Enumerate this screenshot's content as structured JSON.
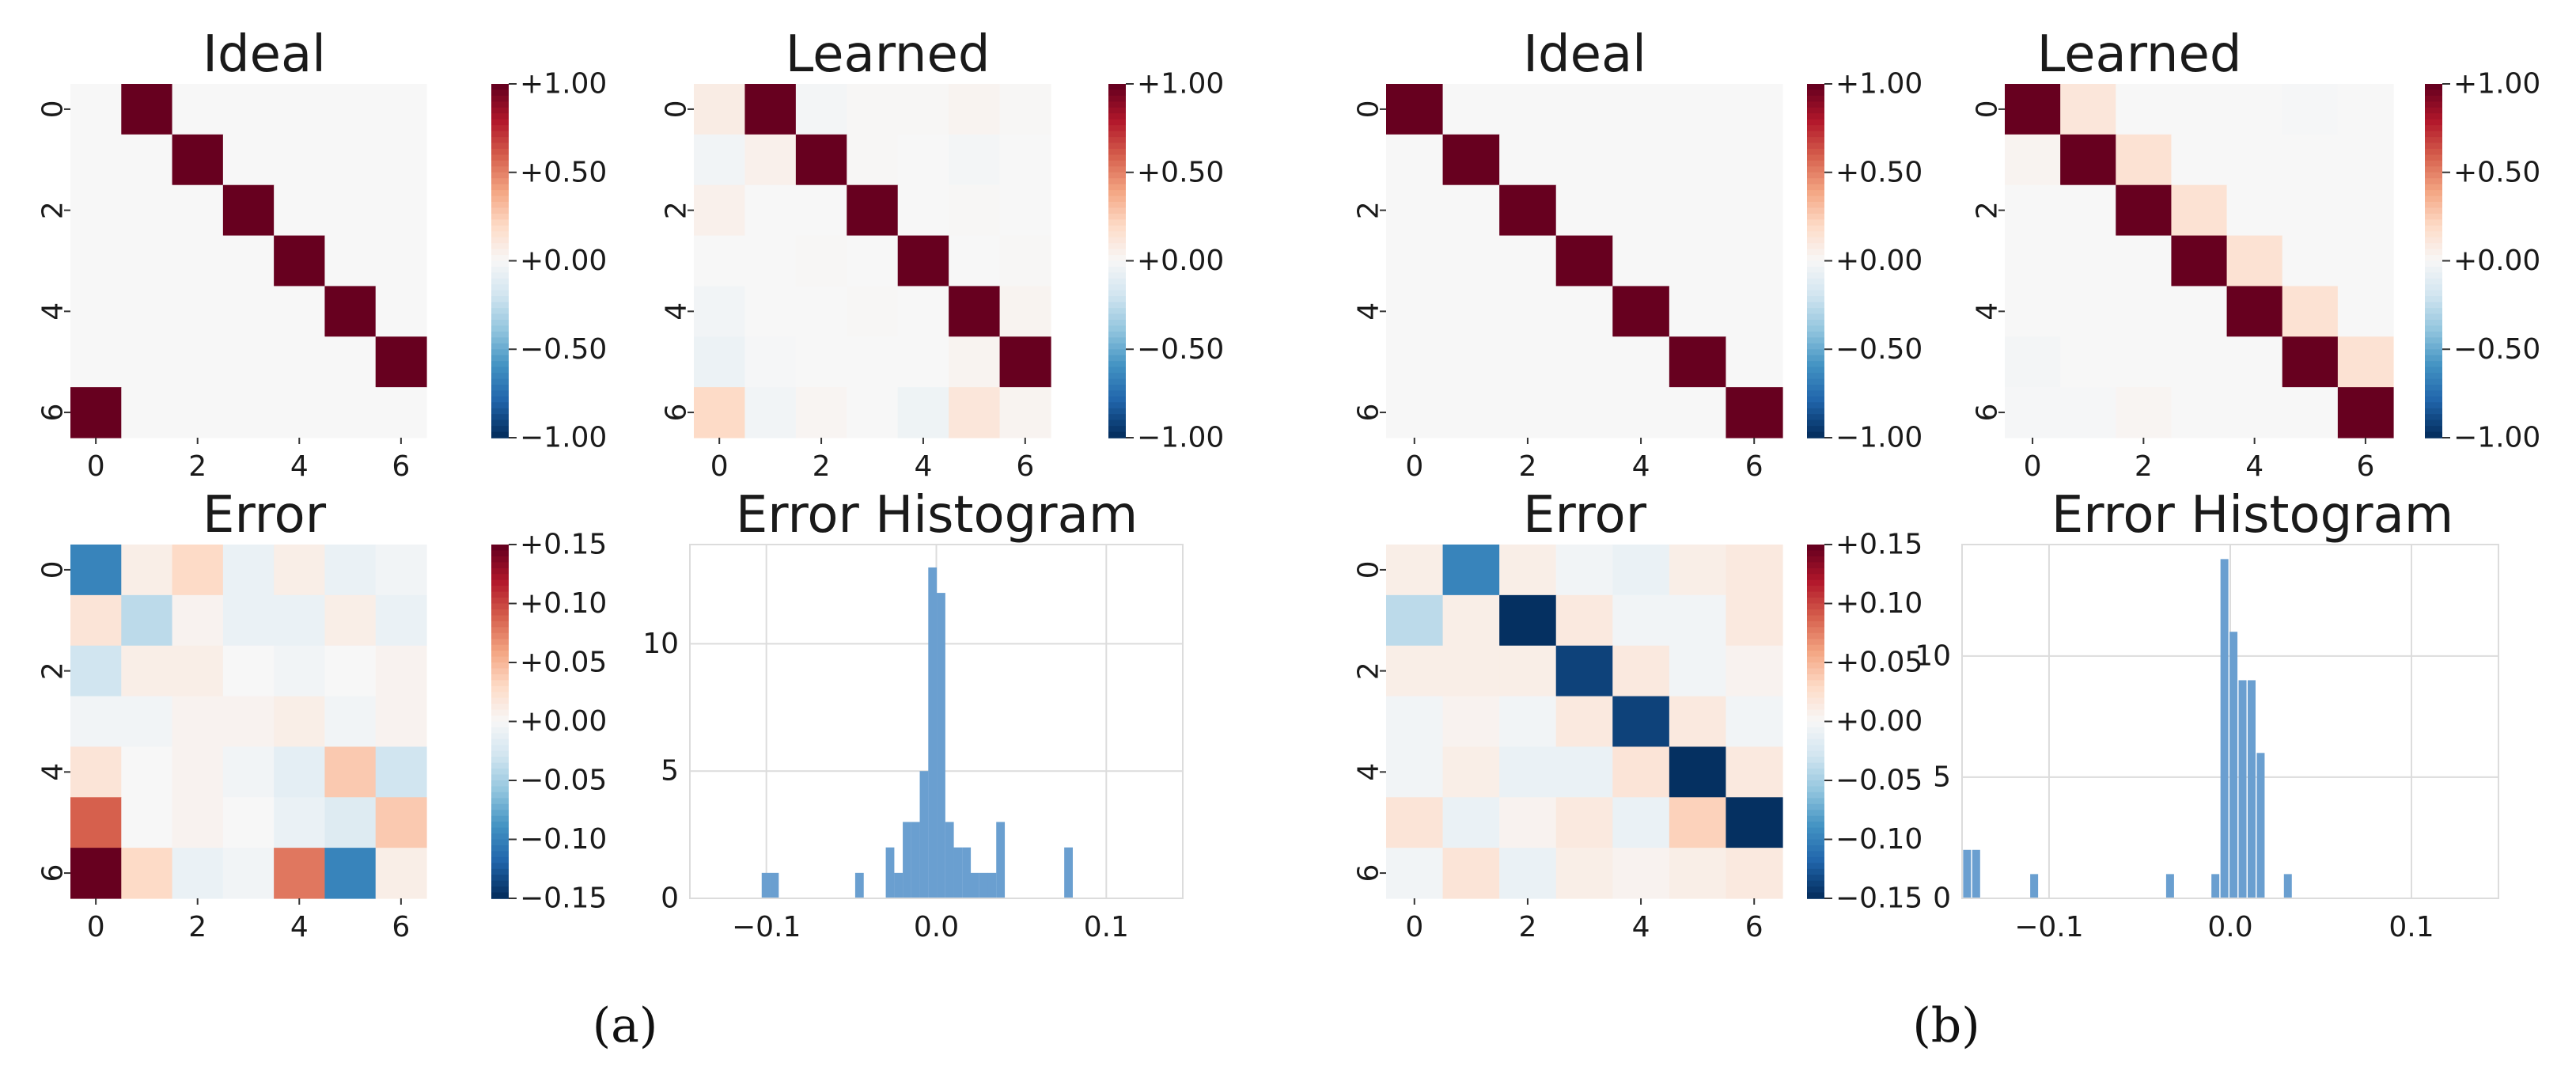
{
  "figure": {
    "captions": [
      "(a)",
      "(b)"
    ]
  },
  "colors": {
    "cmap_stops": [
      [
        0.0,
        "#053061"
      ],
      [
        0.1,
        "#2166ac"
      ],
      [
        0.2,
        "#4393c3"
      ],
      [
        0.3,
        "#92c5de"
      ],
      [
        0.4,
        "#d1e5f0"
      ],
      [
        0.5,
        "#f7f7f7"
      ],
      [
        0.6,
        "#fddbc7"
      ],
      [
        0.7,
        "#f4a582"
      ],
      [
        0.8,
        "#d6604d"
      ],
      [
        0.9,
        "#b2182b"
      ],
      [
        1.0,
        "#67001f"
      ]
    ],
    "hist_bar": "#6a9fd0",
    "grid": "#dcdcdc"
  },
  "chart_data": [
    {
      "type": "heatmap",
      "panel": "a-ideal",
      "title": "Ideal",
      "xticks": [
        "0",
        "2",
        "4",
        "6"
      ],
      "yticks": [
        "0",
        "2",
        "4",
        "6"
      ],
      "vmin": -1,
      "vmax": 1,
      "colorbar_ticks": [
        "+1.00",
        "+0.50",
        "+0.00",
        "−0.50",
        "−1.00"
      ],
      "values": [
        [
          0,
          1,
          0,
          0,
          0,
          0,
          0
        ],
        [
          0,
          0,
          1,
          0,
          0,
          0,
          0
        ],
        [
          0,
          0,
          0,
          1,
          0,
          0,
          0
        ],
        [
          0,
          0,
          0,
          0,
          1,
          0,
          0
        ],
        [
          0,
          0,
          0,
          0,
          0,
          1,
          0
        ],
        [
          0,
          0,
          0,
          0,
          0,
          0,
          1
        ],
        [
          1,
          0,
          0,
          0,
          0,
          0,
          0
        ]
      ]
    },
    {
      "type": "heatmap",
      "panel": "a-learned",
      "title": "Learned",
      "xticks": [
        "0",
        "2",
        "4",
        "6"
      ],
      "yticks": [
        "0",
        "2",
        "4",
        "6"
      ],
      "vmin": -1,
      "vmax": 1,
      "colorbar_ticks": [
        "+1.00",
        "+0.50",
        "+0.00",
        "−0.50",
        "−1.00"
      ],
      "values": [
        [
          0.08,
          1,
          -0.02,
          0.01,
          0.01,
          0.03,
          0.01
        ],
        [
          -0.03,
          0.05,
          1,
          0.01,
          0,
          -0.02,
          0
        ],
        [
          0.05,
          0,
          0,
          1,
          0,
          0.01,
          0
        ],
        [
          0,
          0,
          0.01,
          0,
          1,
          0,
          0.01
        ],
        [
          -0.03,
          0,
          0,
          0.01,
          0,
          1,
          0.03
        ],
        [
          -0.06,
          -0.01,
          0,
          0,
          0,
          0.03,
          1
        ],
        [
          0.2,
          -0.03,
          0.02,
          0,
          -0.05,
          0.12,
          0.03
        ]
      ]
    },
    {
      "type": "heatmap",
      "panel": "a-error",
      "title": "Error",
      "xticks": [
        "0",
        "2",
        "4",
        "6"
      ],
      "yticks": [
        "0",
        "2",
        "4",
        "6"
      ],
      "vmin": -0.15,
      "vmax": 0.15,
      "colorbar_ticks": [
        "+0.15",
        "+0.10",
        "+0.05",
        "+0.00",
        "−0.05",
        "−0.10",
        "−0.15"
      ],
      "values": [
        [
          -0.1,
          0.01,
          0.03,
          -0.01,
          0.01,
          -0.01,
          -0.005
        ],
        [
          0.02,
          -0.04,
          0.005,
          -0.01,
          -0.01,
          0.01,
          -0.01
        ],
        [
          -0.03,
          0.01,
          0.01,
          0,
          -0.005,
          0,
          0.005
        ],
        [
          -0.005,
          -0.005,
          0.005,
          0.005,
          0.01,
          -0.005,
          0.005
        ],
        [
          0.02,
          0,
          0.005,
          -0.005,
          -0.015,
          0.04,
          -0.03
        ],
        [
          0.09,
          0,
          0.005,
          0,
          -0.01,
          -0.02,
          0.04
        ],
        [
          0.15,
          0.03,
          -0.01,
          -0.005,
          0.08,
          -0.1,
          0.01
        ]
      ]
    },
    {
      "type": "bar",
      "panel": "a-hist",
      "title": "Error Histogram",
      "xlim": [
        -0.145,
        0.145
      ],
      "ylim": [
        0,
        13.9
      ],
      "xticks": [
        -0.1,
        0.0,
        0.1
      ],
      "xtick_labels": [
        "−0.1",
        "0.0",
        "0.1"
      ],
      "yticks": [
        0,
        5,
        10
      ],
      "ytick_labels": [
        "0",
        "5",
        "10"
      ],
      "bin_width": 0.0055,
      "bins": [
        [
          -0.1,
          1
        ],
        [
          -0.095,
          1
        ],
        [
          -0.045,
          1
        ],
        [
          -0.027,
          2
        ],
        [
          -0.022,
          1
        ],
        [
          -0.017,
          3
        ],
        [
          -0.012,
          3
        ],
        [
          -0.007,
          5
        ],
        [
          -0.002,
          13
        ],
        [
          0.003,
          12
        ],
        [
          0.008,
          3
        ],
        [
          0.013,
          2
        ],
        [
          0.018,
          2
        ],
        [
          0.023,
          1
        ],
        [
          0.028,
          1
        ],
        [
          0.033,
          1
        ],
        [
          0.038,
          3
        ],
        [
          0.078,
          2
        ]
      ]
    },
    {
      "type": "heatmap",
      "panel": "b-ideal",
      "title": "Ideal",
      "xticks": [
        "0",
        "2",
        "4",
        "6"
      ],
      "yticks": [
        "0",
        "2",
        "4",
        "6"
      ],
      "vmin": -1,
      "vmax": 1,
      "colorbar_ticks": [
        "+1.00",
        "+0.50",
        "+0.00",
        "−0.50",
        "−1.00"
      ],
      "values": [
        [
          1,
          0,
          0,
          0,
          0,
          0,
          0
        ],
        [
          0,
          1,
          0,
          0,
          0,
          0,
          0
        ],
        [
          0,
          0,
          1,
          0,
          0,
          0,
          0
        ],
        [
          0,
          0,
          0,
          1,
          0,
          0,
          0
        ],
        [
          0,
          0,
          0,
          0,
          1,
          0,
          0
        ],
        [
          0,
          0,
          0,
          0,
          0,
          1,
          0
        ],
        [
          0,
          0,
          0,
          0,
          0,
          0,
          1
        ]
      ]
    },
    {
      "type": "heatmap",
      "panel": "b-learned",
      "title": "Learned",
      "xticks": [
        "0",
        "2",
        "4",
        "6"
      ],
      "yticks": [
        "0",
        "2",
        "4",
        "6"
      ],
      "vmin": -1,
      "vmax": 1,
      "colorbar_ticks": [
        "+1.00",
        "+0.50",
        "+0.00",
        "−0.50",
        "−1.00"
      ],
      "values": [
        [
          1,
          0.12,
          0,
          0,
          0,
          -0.01,
          0
        ],
        [
          0.03,
          1,
          0.15,
          0,
          0,
          0,
          0
        ],
        [
          0,
          0,
          1,
          0.15,
          0,
          0,
          0
        ],
        [
          0,
          0,
          0,
          1,
          0.15,
          0,
          0
        ],
        [
          0,
          0,
          0,
          0,
          1,
          0.15,
          0
        ],
        [
          -0.02,
          0,
          0,
          0,
          0,
          1,
          0.15
        ],
        [
          -0.01,
          -0.01,
          0.02,
          0,
          0,
          0,
          1
        ]
      ]
    },
    {
      "type": "heatmap",
      "panel": "b-error",
      "title": "Error",
      "xticks": [
        "0",
        "2",
        "4",
        "6"
      ],
      "yticks": [
        "0",
        "2",
        "4",
        "6"
      ],
      "vmin": -0.15,
      "vmax": 0.15,
      "colorbar_ticks": [
        "+0.15",
        "+0.10",
        "+0.05",
        "+0.00",
        "−0.05",
        "−0.10",
        "−0.15"
      ],
      "values": [
        [
          0.01,
          -0.1,
          0.01,
          -0.005,
          -0.01,
          0.01,
          0.015
        ],
        [
          -0.04,
          0.01,
          -0.15,
          0.015,
          -0.005,
          -0.005,
          0.015
        ],
        [
          0.01,
          0.01,
          0.01,
          -0.14,
          0.015,
          -0.005,
          0.005
        ],
        [
          -0.005,
          0.005,
          -0.005,
          0.015,
          -0.14,
          0.015,
          -0.005
        ],
        [
          -0.005,
          0.01,
          -0.01,
          -0.01,
          0.02,
          -0.15,
          0.015
        ],
        [
          0.02,
          -0.01,
          0.005,
          0.015,
          -0.01,
          0.035,
          -0.16
        ],
        [
          -0.005,
          0.02,
          -0.01,
          0.01,
          0.005,
          0.01,
          0.015
        ]
      ]
    },
    {
      "type": "bar",
      "panel": "b-hist",
      "title": "Error Histogram",
      "xlim": [
        -0.148,
        0.148
      ],
      "ylim": [
        0,
        14.6
      ],
      "xticks": [
        -0.1,
        0.0,
        0.1
      ],
      "xtick_labels": [
        "−0.1",
        "0.0",
        "0.1"
      ],
      "yticks": [
        0,
        5,
        10
      ],
      "ytick_labels": [
        "0",
        "5",
        "10"
      ],
      "bin_width": 0.0048,
      "bins": [
        [
          -0.145,
          2
        ],
        [
          -0.14,
          2
        ],
        [
          -0.108,
          1
        ],
        [
          -0.033,
          1
        ],
        [
          -0.008,
          1
        ],
        [
          -0.003,
          14
        ],
        [
          0.002,
          11
        ],
        [
          0.007,
          9
        ],
        [
          0.012,
          9
        ],
        [
          0.017,
          6
        ],
        [
          0.032,
          1
        ]
      ]
    }
  ]
}
